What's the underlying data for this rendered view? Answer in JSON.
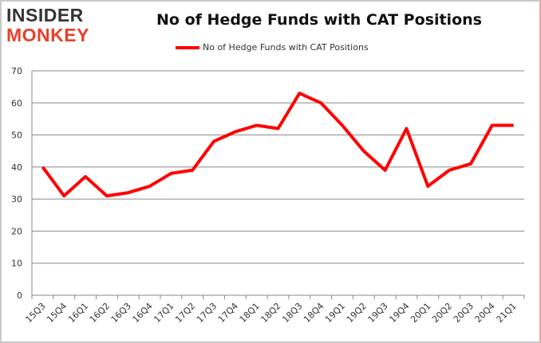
{
  "logo": {
    "line1": "INSIDER",
    "line2": "MONKEY"
  },
  "chart_data": {
    "type": "line",
    "title": "No of Hedge Funds with CAT Positions",
    "xlabel": "",
    "ylabel": "",
    "ylim": [
      0,
      70
    ],
    "yticks": [
      0,
      10,
      20,
      30,
      40,
      50,
      60,
      70
    ],
    "grid": true,
    "legend_position": "top",
    "categories": [
      "15Q3",
      "15Q4",
      "16Q1",
      "16Q2",
      "16Q3",
      "16Q4",
      "17Q1",
      "17Q2",
      "17Q3",
      "17Q4",
      "18Q1",
      "18Q2",
      "18Q3",
      "18Q4",
      "19Q1",
      "19Q2",
      "19Q3",
      "19Q4",
      "20Q1",
      "20Q2",
      "20Q3",
      "20Q4",
      "21Q1"
    ],
    "series": [
      {
        "name": "No of Hedge Funds with CAT Positions",
        "color": "#ff0000",
        "values": [
          40,
          31,
          37,
          31,
          32,
          34,
          38,
          39,
          48,
          51,
          53,
          52,
          63,
          60,
          53,
          45,
          39,
          52,
          34,
          39,
          41,
          53,
          53
        ]
      }
    ]
  }
}
